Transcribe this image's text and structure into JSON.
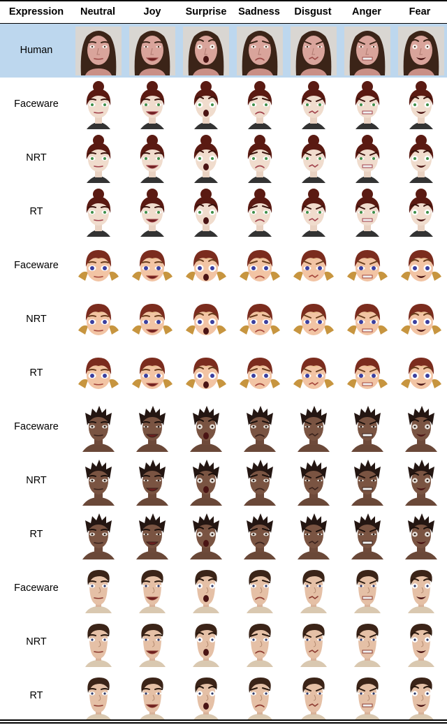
{
  "columns": {
    "header": "Expression",
    "expressions": [
      "Neutral",
      "Joy",
      "Surprise",
      "Sadness",
      "Disgust",
      "Anger",
      "Fear"
    ]
  },
  "rows": [
    {
      "label": "Human",
      "subject": "human-actress"
    },
    {
      "label": "Faceware",
      "subject": "female-character-dark-hair"
    },
    {
      "label": "NRT",
      "subject": "female-character-dark-hair"
    },
    {
      "label": "RT",
      "subject": "female-character-dark-hair"
    },
    {
      "label": "Faceware",
      "subject": "blonde-girl-character"
    },
    {
      "label": "NRT",
      "subject": "blonde-girl-character"
    },
    {
      "label": "RT",
      "subject": "blonde-girl-character"
    },
    {
      "label": "Faceware",
      "subject": "dark-skinned-male-character"
    },
    {
      "label": "NRT",
      "subject": "dark-skinned-male-character"
    },
    {
      "label": "RT",
      "subject": "dark-skinned-male-character"
    },
    {
      "label": "Faceware",
      "subject": "cartoon-man-character"
    },
    {
      "label": "NRT",
      "subject": "cartoon-man-character"
    },
    {
      "label": "RT",
      "subject": "cartoon-man-character"
    }
  ],
  "colors": {
    "human_row_highlight": "#bdd7ee"
  }
}
